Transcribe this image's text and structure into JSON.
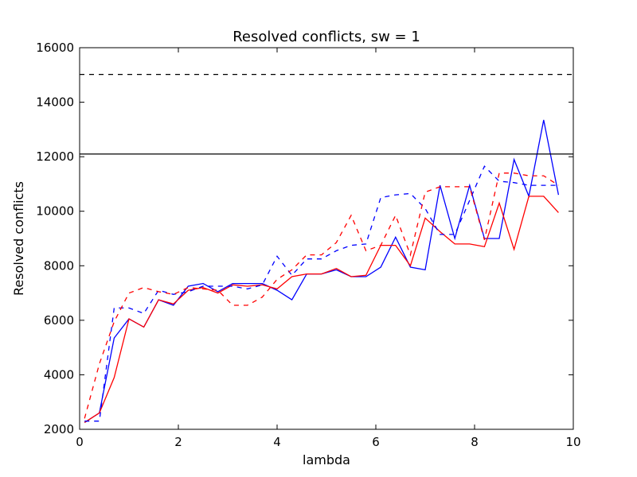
{
  "chart_data": {
    "type": "line",
    "title": "Resolved conflicts, sw = 1",
    "xlabel": "lambda",
    "ylabel": "Resolved conflicts",
    "xlim": [
      0,
      10
    ],
    "ylim": [
      2000,
      16000
    ],
    "xticks": [
      0,
      2,
      4,
      6,
      8,
      10
    ],
    "yticks": [
      2000,
      4000,
      6000,
      8000,
      10000,
      12000,
      14000,
      16000
    ],
    "grid": false,
    "reference_lines": [
      {
        "y": 12100,
        "color": "#000000",
        "style": "solid"
      },
      {
        "y": 15020,
        "color": "#000000",
        "style": "dashed"
      }
    ],
    "x": [
      0.1,
      0.4,
      0.7,
      1.0,
      1.3,
      1.6,
      1.9,
      2.2,
      2.5,
      2.8,
      3.1,
      3.4,
      3.7,
      4.0,
      4.3,
      4.6,
      4.9,
      5.2,
      5.5,
      5.8,
      6.1,
      6.4,
      6.7,
      7.0,
      7.3,
      7.6,
      7.9,
      8.2,
      8.5,
      8.8,
      9.1,
      9.4,
      9.7
    ],
    "series": [
      {
        "color": "#0000ff",
        "style": "solid",
        "values": [
          2250,
          2600,
          5350,
          6050,
          5750,
          6750,
          6550,
          7250,
          7350,
          7050,
          7350,
          7350,
          7350,
          7100,
          6750,
          7700,
          7700,
          7850,
          7600,
          7600,
          7950,
          9050,
          7950,
          7850,
          10950,
          9000,
          10950,
          9000,
          9000,
          11900,
          10550,
          13350,
          10600
        ]
      },
      {
        "color": "#ff0000",
        "style": "solid",
        "values": [
          2250,
          2600,
          3900,
          6050,
          5750,
          6750,
          6600,
          7100,
          7200,
          7000,
          7300,
          7250,
          7300,
          7150,
          7600,
          7700,
          7700,
          7900,
          7600,
          7650,
          8750,
          8750,
          8000,
          9750,
          9250,
          8800,
          8800,
          8700,
          10300,
          8600,
          10550,
          10550,
          9950
        ]
      },
      {
        "color": "#0000ff",
        "style": "dashed",
        "values": [
          2300,
          2300,
          6450,
          6450,
          6250,
          7100,
          6950,
          7050,
          7250,
          7250,
          7250,
          7150,
          7300,
          8350,
          7650,
          8250,
          8250,
          8550,
          8750,
          8800,
          10500,
          10600,
          10650,
          10100,
          9150,
          9150,
          10400,
          11650,
          11100,
          11050,
          10950,
          10950,
          10950
        ]
      },
      {
        "color": "#ff0000",
        "style": "dashed",
        "values": [
          2400,
          4400,
          5950,
          7000,
          7200,
          7050,
          6950,
          7200,
          7150,
          7100,
          6550,
          6550,
          6850,
          7500,
          7850,
          8400,
          8400,
          8850,
          9850,
          8550,
          8750,
          9850,
          8400,
          10700,
          10900,
          10900,
          10900,
          8950,
          11400,
          11400,
          11300,
          11300,
          10950
        ]
      }
    ]
  }
}
